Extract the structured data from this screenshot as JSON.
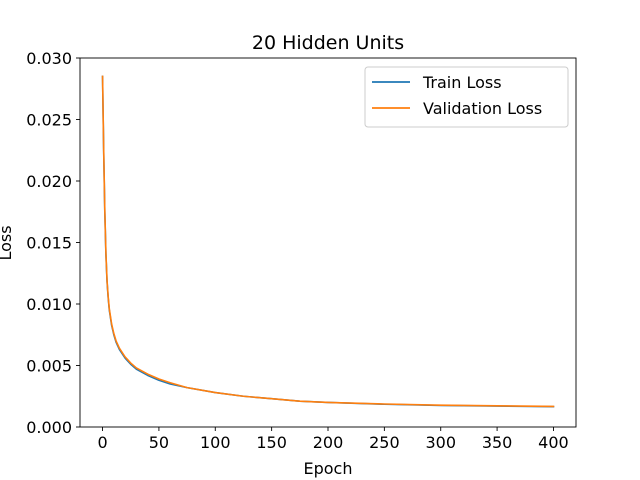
{
  "chart_data": {
    "type": "line",
    "title": "20 Hidden Units",
    "xlabel": "Epoch",
    "ylabel": "Loss",
    "xlim": [
      -20,
      420
    ],
    "ylim": [
      0,
      0.03
    ],
    "xticks": [
      0,
      50,
      100,
      150,
      200,
      250,
      300,
      350,
      400
    ],
    "yticks": [
      0.0,
      0.005,
      0.01,
      0.015,
      0.02,
      0.025,
      0.03
    ],
    "ytick_labels": [
      "0.000",
      "0.005",
      "0.010",
      "0.015",
      "0.020",
      "0.025",
      "0.030"
    ],
    "grid": false,
    "legend_position": "upper right",
    "x": [
      0,
      1,
      2,
      3,
      4,
      5,
      6,
      8,
      10,
      12,
      15,
      20,
      25,
      30,
      40,
      50,
      60,
      75,
      100,
      125,
      150,
      175,
      200,
      250,
      300,
      350,
      400
    ],
    "series": [
      {
        "name": "Train Loss",
        "color": "#1f77b4",
        "values": [
          0.0285,
          0.0225,
          0.0175,
          0.014,
          0.0118,
          0.0105,
          0.0095,
          0.0083,
          0.0075,
          0.0069,
          0.0063,
          0.0056,
          0.0051,
          0.0047,
          0.0042,
          0.0038,
          0.0035,
          0.0032,
          0.0028,
          0.0025,
          0.0023,
          0.0021,
          0.002,
          0.00185,
          0.00175,
          0.0017,
          0.00165
        ]
      },
      {
        "name": "Validation Loss",
        "color": "#ff7f0e",
        "values": [
          0.0285,
          0.0226,
          0.0176,
          0.0141,
          0.0119,
          0.0106,
          0.0096,
          0.0084,
          0.0076,
          0.007,
          0.0064,
          0.0057,
          0.0052,
          0.0048,
          0.0043,
          0.0039,
          0.0036,
          0.0032,
          0.0028,
          0.0025,
          0.0023,
          0.0021,
          0.002,
          0.00187,
          0.00177,
          0.00172,
          0.00167
        ]
      }
    ]
  }
}
